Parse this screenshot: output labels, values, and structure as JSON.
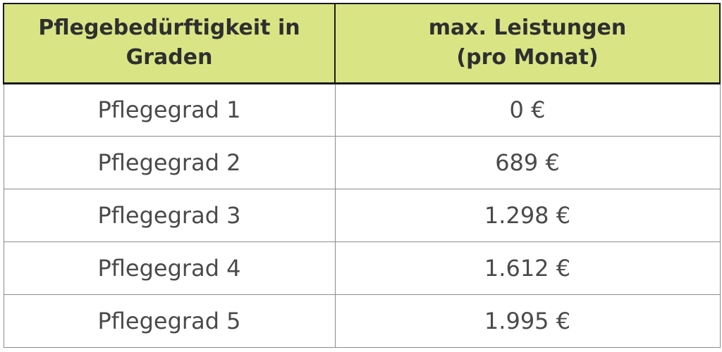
{
  "table": {
    "headers": [
      {
        "line1": "Pflegebedürftigkeit in",
        "line2": "Graden"
      },
      {
        "line1": "max. Leistungen",
        "line2": "(pro Monat)"
      }
    ],
    "rows": [
      {
        "grade": "Pflegegrad 1",
        "amount": "0 €"
      },
      {
        "grade": "Pflegegrad 2",
        "amount": "689 €"
      },
      {
        "grade": "Pflegegrad 3",
        "amount": "1.298 €"
      },
      {
        "grade": "Pflegegrad 4",
        "amount": "1.612 €"
      },
      {
        "grade": "Pflegegrad 5",
        "amount": "1.995 €"
      }
    ]
  },
  "colors": {
    "header_background": "#d9e585",
    "header_text": "#2f2f2f",
    "body_text": "#4a4a4a",
    "grid_line": "#8c8c8c"
  }
}
